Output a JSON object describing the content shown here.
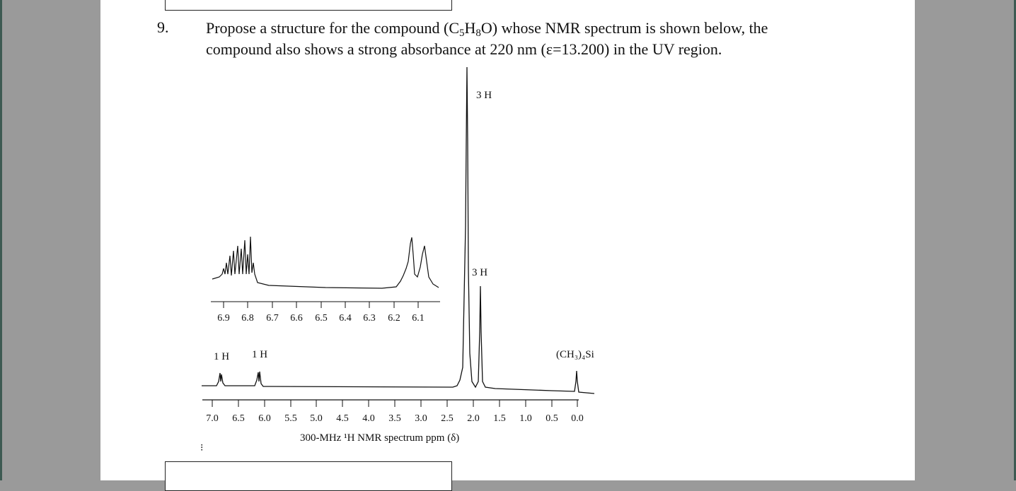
{
  "question": {
    "number": "9.",
    "line1_a": "Propose a structure for the compound (C",
    "sub1": "5",
    "line1_b": "H",
    "sub2": "8",
    "line1_c": "O) whose NMR spectrum is shown below, the",
    "line2": "compound also shows a strong absorbance at 220 nm (ε=13.200) in the UV region."
  },
  "chart_data": {
    "type": "line",
    "title": "",
    "xlabel": "300-MHz ¹H NMR spectrum ppm (δ)",
    "xlim": [
      7.0,
      0.0
    ],
    "main_ticks": [
      "7.0",
      "6.5",
      "6.0",
      "5.5",
      "5.0",
      "4.5",
      "4.0",
      "3.5",
      "3.0",
      "2.5",
      "2.0",
      "1.5",
      "1.0",
      "0.5",
      "0.0"
    ],
    "inset_ticks": [
      "6.9",
      "6.8",
      "6.7",
      "6.6",
      "6.5",
      "6.4",
      "6.3",
      "6.2",
      "6.1"
    ],
    "peaks": [
      {
        "ppm": 6.85,
        "label": "1 H"
      },
      {
        "ppm": 6.1,
        "label": "1 H"
      },
      {
        "ppm": 2.2,
        "label": "3 H"
      },
      {
        "ppm": 1.9,
        "label": "3 H"
      },
      {
        "ppm": 0.0,
        "label": "(CH3)4Si"
      }
    ],
    "tms_label": "(CH₃)₄Si",
    "big_peak_label": "3 H",
    "mid_peak_label": "3 H",
    "h1_label": "1 H",
    "h2_label": "1 H"
  }
}
